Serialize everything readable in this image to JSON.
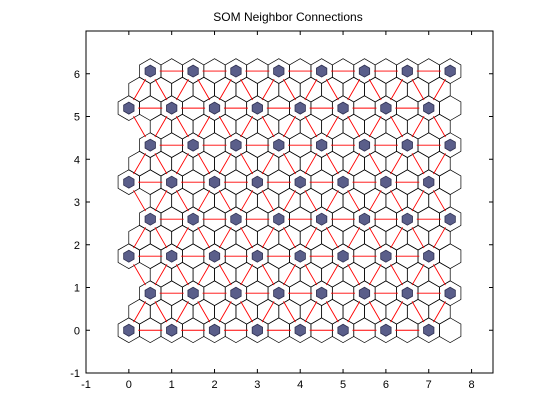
{
  "chart_data": {
    "type": "scatter",
    "title": "SOM Neighbor Connections",
    "xlabel": "",
    "ylabel": "",
    "xlim": [
      -1,
      8.5
    ],
    "ylim": [
      -1,
      7
    ],
    "x_ticks": [
      "-1",
      "0",
      "1",
      "2",
      "3",
      "4",
      "5",
      "6",
      "7",
      "8"
    ],
    "y_ticks": [
      "-1",
      "0",
      "1",
      "2",
      "3",
      "4",
      "5",
      "6"
    ],
    "grid": false,
    "topology": "hexagonal",
    "grid_dims": [
      8,
      8
    ],
    "rows": [
      {
        "y": 0,
        "x": [
          0,
          1,
          2,
          3,
          4,
          5,
          6,
          7
        ]
      },
      {
        "y": 0.866,
        "x": [
          0.5,
          1.5,
          2.5,
          3.5,
          4.5,
          5.5,
          6.5,
          7.5
        ]
      },
      {
        "y": 1.732,
        "x": [
          0,
          1,
          2,
          3,
          4,
          5,
          6,
          7
        ]
      },
      {
        "y": 2.598,
        "x": [
          0.5,
          1.5,
          2.5,
          3.5,
          4.5,
          5.5,
          6.5,
          7.5
        ]
      },
      {
        "y": 3.464,
        "x": [
          0,
          1,
          2,
          3,
          4,
          5,
          6,
          7
        ]
      },
      {
        "y": 4.33,
        "x": [
          0.5,
          1.5,
          2.5,
          3.5,
          4.5,
          5.5,
          6.5,
          7.5
        ]
      },
      {
        "y": 5.196,
        "x": [
          0,
          1,
          2,
          3,
          4,
          5,
          6,
          7
        ]
      },
      {
        "y": 6.062,
        "x": [
          0.5,
          1.5,
          2.5,
          3.5,
          4.5,
          5.5,
          6.5,
          7.5
        ]
      }
    ],
    "colors": {
      "neuron_fill": "#5a5e8a",
      "neuron_edge": "#2e3050",
      "cell_edge": "#000000",
      "connection": "#ff0000",
      "axes": "#000000",
      "background": "#ffffff"
    }
  }
}
